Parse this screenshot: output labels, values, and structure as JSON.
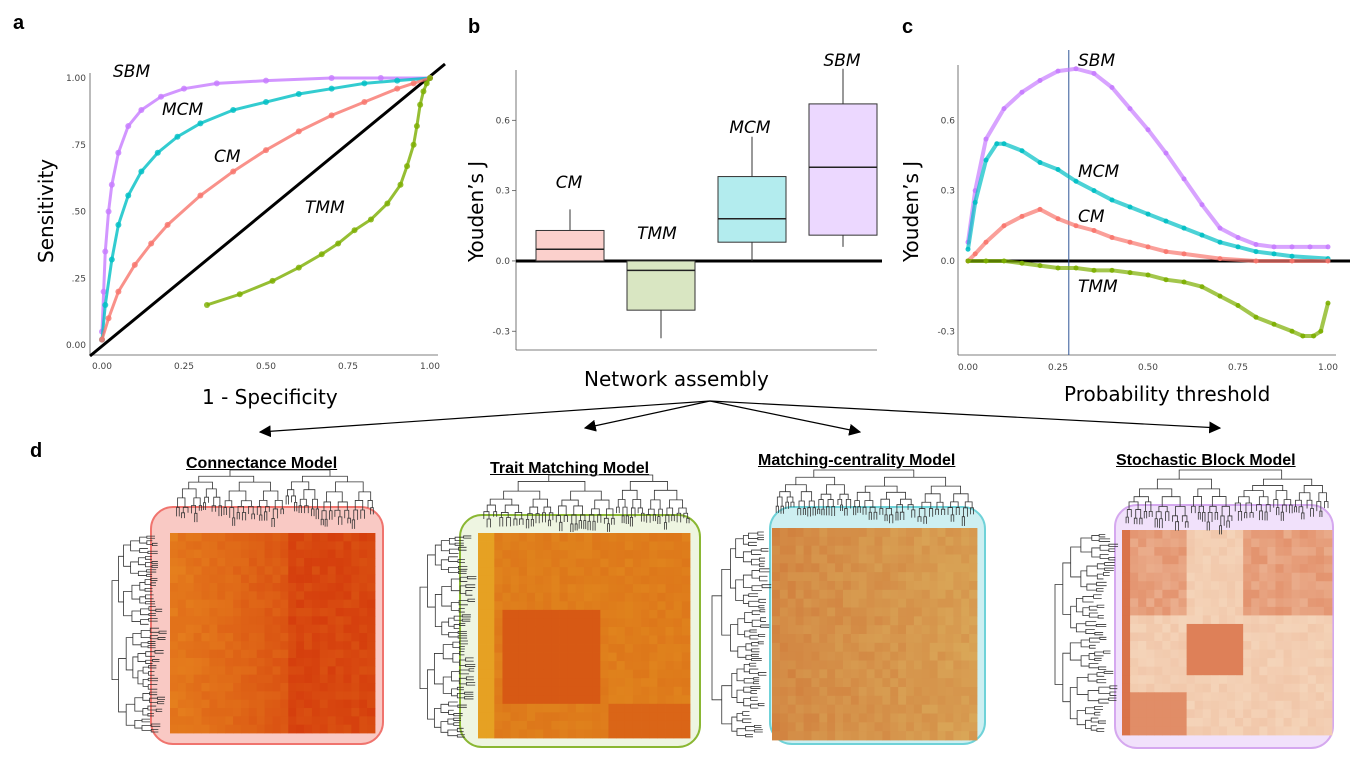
{
  "panel_labels": {
    "a": "a",
    "b": "b",
    "c": "c",
    "d": "d"
  },
  "chart_data": [
    {
      "panel": "a",
      "type": "line",
      "xlabel": "1 - Specificity",
      "ylabel": "Sensitivity",
      "xlim": [
        0,
        1
      ],
      "ylim": [
        0,
        1
      ],
      "xticks": [
        "0.00",
        "0.25",
        "0.50",
        "0.75",
        "1.00"
      ],
      "yticks": [
        "0.00",
        ".25",
        ".50",
        ".75",
        "1.00"
      ],
      "series": [
        {
          "name": "SBM",
          "color": "#c77cff",
          "x": [
            0,
            0.005,
            0.01,
            0.02,
            0.03,
            0.05,
            0.08,
            0.12,
            0.18,
            0.25,
            0.35,
            0.5,
            0.7,
            0.85,
            1
          ],
          "y": [
            0.05,
            0.2,
            0.35,
            0.5,
            0.6,
            0.72,
            0.82,
            0.88,
            0.93,
            0.96,
            0.98,
            0.99,
            1,
            1,
            1
          ]
        },
        {
          "name": "MCM",
          "color": "#00bfc4",
          "x": [
            0,
            0.01,
            0.03,
            0.05,
            0.08,
            0.12,
            0.17,
            0.23,
            0.3,
            0.4,
            0.5,
            0.6,
            0.7,
            0.8,
            0.9,
            1
          ],
          "y": [
            0.02,
            0.15,
            0.32,
            0.45,
            0.56,
            0.65,
            0.72,
            0.78,
            0.83,
            0.88,
            0.91,
            0.94,
            0.96,
            0.98,
            0.99,
            1
          ]
        },
        {
          "name": "CM",
          "color": "#f8766d",
          "x": [
            0,
            0.02,
            0.05,
            0.1,
            0.15,
            0.2,
            0.3,
            0.4,
            0.5,
            0.6,
            0.7,
            0.8,
            0.9,
            0.95,
            1
          ],
          "y": [
            0.02,
            0.1,
            0.2,
            0.3,
            0.38,
            0.45,
            0.56,
            0.65,
            0.73,
            0.8,
            0.86,
            0.91,
            0.96,
            0.98,
            1
          ]
        },
        {
          "name": "TMM",
          "color": "#7cae00",
          "x": [
            0.32,
            0.42,
            0.52,
            0.6,
            0.67,
            0.72,
            0.77,
            0.82,
            0.87,
            0.91,
            0.93,
            0.95,
            0.96,
            0.97,
            0.98,
            0.99,
            1
          ],
          "y": [
            0.15,
            0.19,
            0.24,
            0.29,
            0.34,
            0.38,
            0.43,
            0.47,
            0.53,
            0.6,
            0.67,
            0.75,
            0.82,
            0.9,
            0.95,
            0.98,
            1
          ]
        }
      ],
      "reference_line": "diagonal"
    },
    {
      "panel": "b",
      "type": "box",
      "xlabel": "Network assembly",
      "ylabel": "Youden’s J",
      "ylim": [
        -0.38,
        0.9
      ],
      "yticks": [
        "-0.3",
        "0.0",
        "0.3",
        "0.6"
      ],
      "categories": [
        "CM",
        "TMM",
        "MCM",
        "SBM"
      ],
      "boxes": [
        {
          "name": "CM",
          "color": "#f8766d",
          "fill": "#fbd0cc",
          "whisker_low": 0.0,
          "q1": 0.0,
          "median": 0.05,
          "q3": 0.13,
          "whisker_high": 0.22
        },
        {
          "name": "TMM",
          "color": "#7cae00",
          "fill": "#d9e6c2",
          "whisker_low": -0.33,
          "q1": -0.21,
          "median": -0.04,
          "q3": 0.0,
          "whisker_high": 0.0
        },
        {
          "name": "MCM",
          "color": "#00bfc4",
          "fill": "#b3ecee",
          "whisker_low": 0.0,
          "q1": 0.08,
          "median": 0.18,
          "q3": 0.36,
          "whisker_high": 0.53
        },
        {
          "name": "SBM",
          "color": "#c77cff",
          "fill": "#ecd8ff",
          "whisker_low": 0.06,
          "q1": 0.11,
          "median": 0.4,
          "q3": 0.67,
          "whisker_high": 0.82
        }
      ]
    },
    {
      "panel": "c",
      "type": "line",
      "xlabel": "Probability threshold",
      "ylabel": "Youden’s J",
      "xlim": [
        0,
        1
      ],
      "ylim": [
        -0.38,
        0.9
      ],
      "xticks": [
        "0.00",
        "0.25",
        "0.50",
        "0.75",
        "1.00"
      ],
      "yticks": [
        "-0.3",
        "0.0",
        "0.3",
        "0.6"
      ],
      "vline_x": 0.28,
      "series": [
        {
          "name": "SBM",
          "color": "#c77cff",
          "x": [
            0,
            0.02,
            0.05,
            0.1,
            0.15,
            0.2,
            0.25,
            0.3,
            0.35,
            0.4,
            0.45,
            0.5,
            0.55,
            0.6,
            0.65,
            0.7,
            0.75,
            0.8,
            0.85,
            0.9,
            0.95,
            1
          ],
          "y": [
            0.08,
            0.3,
            0.52,
            0.65,
            0.72,
            0.77,
            0.81,
            0.82,
            0.8,
            0.74,
            0.65,
            0.56,
            0.46,
            0.35,
            0.24,
            0.14,
            0.1,
            0.07,
            0.06,
            0.06,
            0.06,
            0.06
          ]
        },
        {
          "name": "MCM",
          "color": "#00bfc4",
          "x": [
            0,
            0.02,
            0.05,
            0.08,
            0.1,
            0.15,
            0.2,
            0.25,
            0.3,
            0.35,
            0.4,
            0.45,
            0.5,
            0.55,
            0.6,
            0.65,
            0.7,
            0.75,
            0.8,
            0.85,
            0.9,
            1
          ],
          "y": [
            0.05,
            0.25,
            0.43,
            0.5,
            0.5,
            0.47,
            0.42,
            0.39,
            0.34,
            0.3,
            0.26,
            0.23,
            0.2,
            0.17,
            0.14,
            0.11,
            0.08,
            0.06,
            0.04,
            0.03,
            0.02,
            0.01
          ]
        },
        {
          "name": "CM",
          "color": "#f8766d",
          "x": [
            0,
            0.02,
            0.05,
            0.1,
            0.15,
            0.2,
            0.25,
            0.3,
            0.35,
            0.4,
            0.45,
            0.5,
            0.55,
            0.6,
            0.7,
            0.8,
            0.9,
            1
          ],
          "y": [
            0.0,
            0.03,
            0.08,
            0.15,
            0.19,
            0.22,
            0.18,
            0.15,
            0.13,
            0.1,
            0.08,
            0.06,
            0.04,
            0.03,
            0.01,
            0.0,
            0.0,
            0.0
          ]
        },
        {
          "name": "TMM",
          "color": "#7cae00",
          "x": [
            0,
            0.05,
            0.1,
            0.15,
            0.2,
            0.25,
            0.3,
            0.35,
            0.4,
            0.45,
            0.5,
            0.55,
            0.6,
            0.65,
            0.7,
            0.75,
            0.8,
            0.85,
            0.9,
            0.93,
            0.96,
            0.98,
            1
          ],
          "y": [
            0.0,
            0.0,
            0.0,
            -0.01,
            -0.02,
            -0.03,
            -0.03,
            -0.04,
            -0.04,
            -0.05,
            -0.06,
            -0.08,
            -0.09,
            -0.11,
            -0.15,
            -0.19,
            -0.24,
            -0.27,
            -0.3,
            -0.32,
            -0.32,
            -0.3,
            -0.18
          ]
        }
      ]
    }
  ],
  "heatmaps": [
    {
      "title": "Connectance Model",
      "border": "#f0746e",
      "bg": "#f9c9c4"
    },
    {
      "title": "Trait Matching Model",
      "border": "#8ab733",
      "bg": "#eef5e1"
    },
    {
      "title": "Matching-centrality Model",
      "border": "#6fd2d8",
      "bg": "#cdeff1"
    },
    {
      "title": "Stochastic Block Model",
      "border": "#d5a8ef",
      "bg": "#f1e1fb"
    }
  ]
}
